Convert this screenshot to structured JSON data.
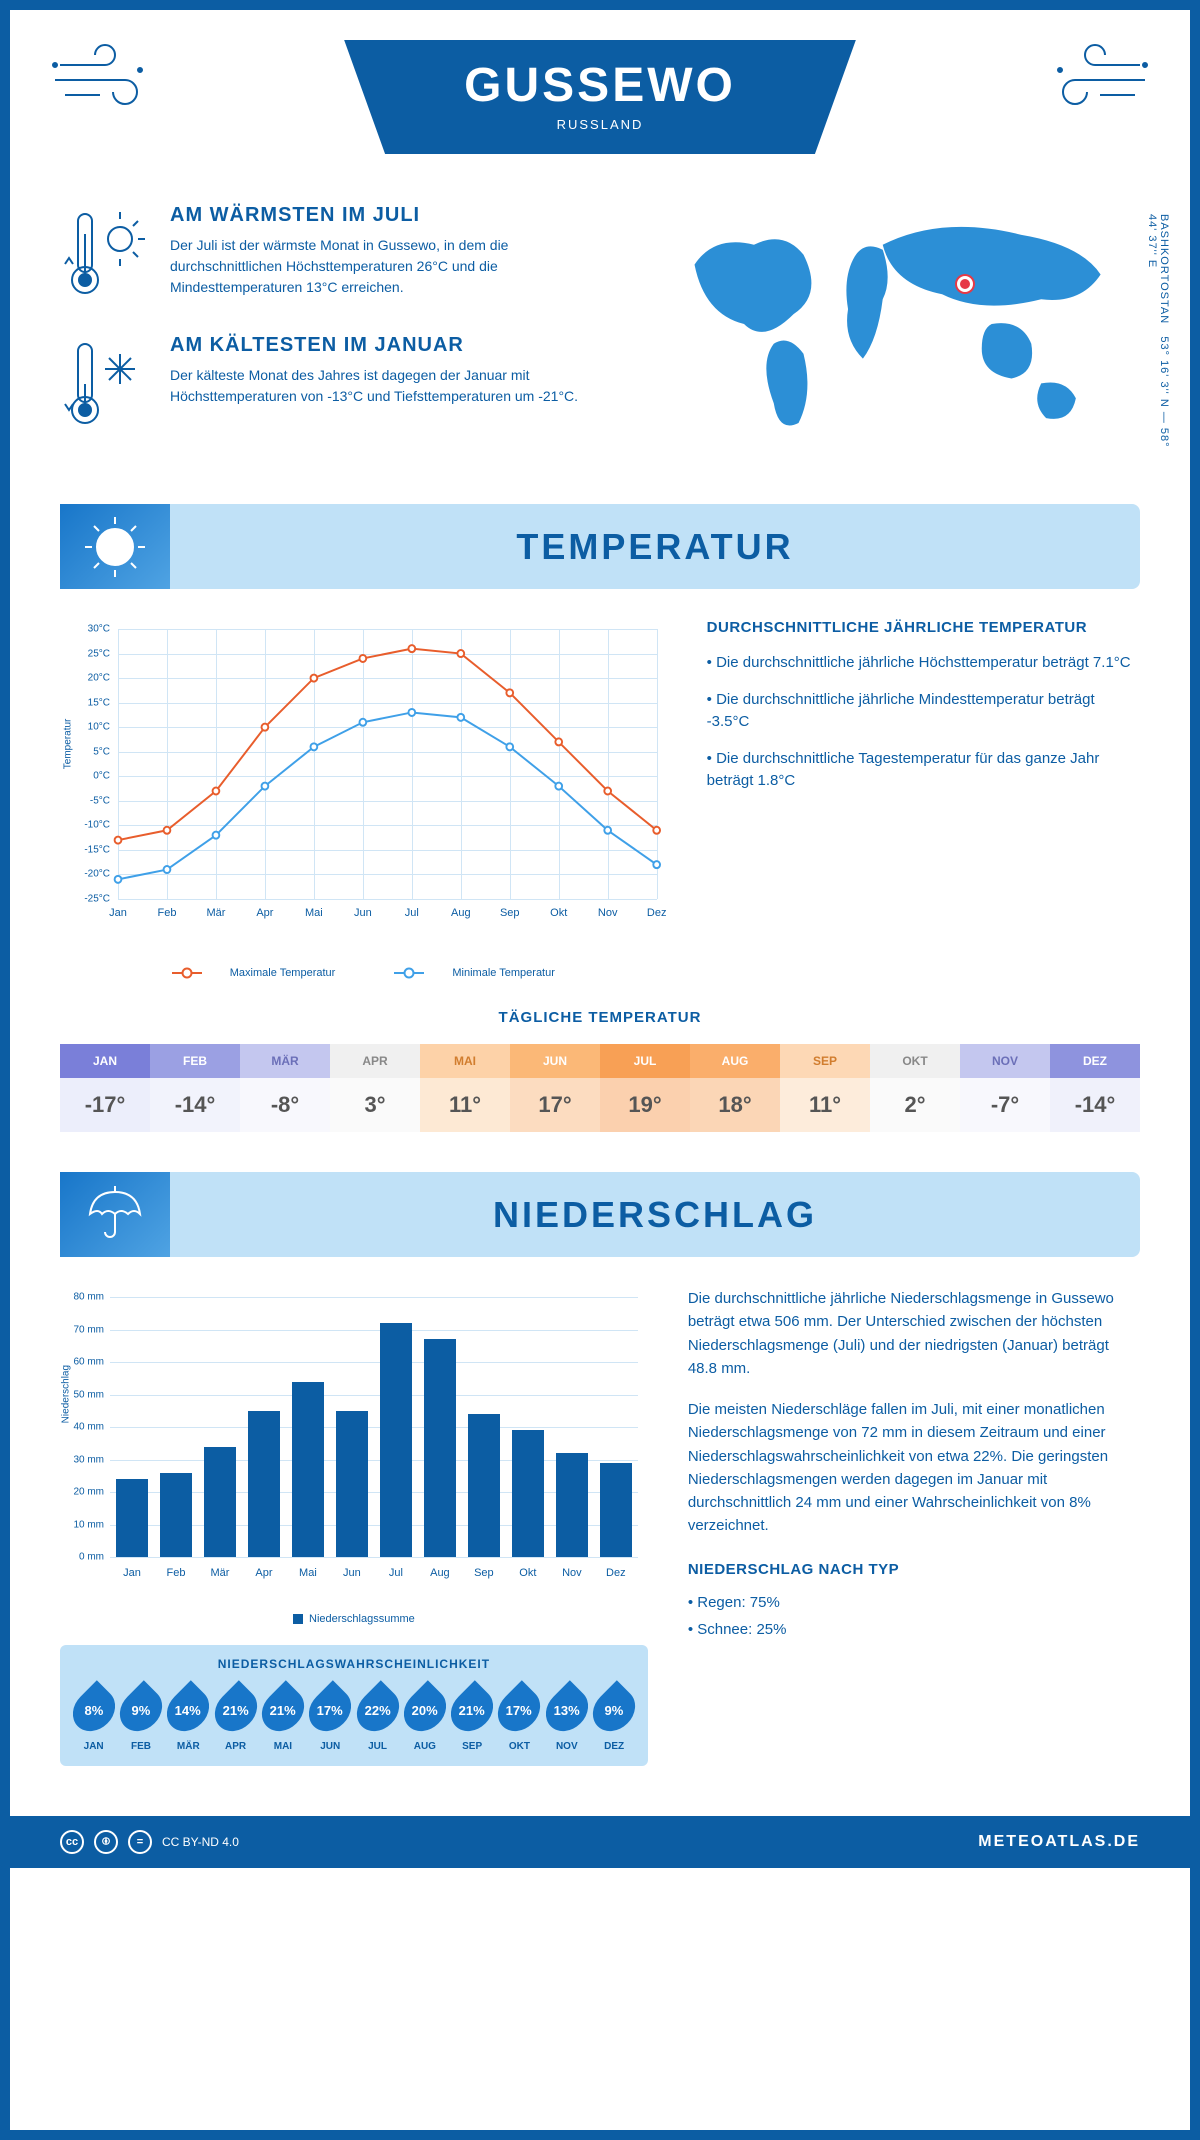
{
  "header": {
    "title": "GUSSEWO",
    "subtitle": "RUSSLAND"
  },
  "intro": {
    "warm": {
      "title": "AM WÄRMSTEN IM JULI",
      "text": "Der Juli ist der wärmste Monat in Gussewo, in dem die durchschnittlichen Höchsttemperaturen 26°C und die Mindesttemperaturen 13°C erreichen."
    },
    "cold": {
      "title": "AM KÄLTESTEN IM JANUAR",
      "text": "Der kälteste Monat des Jahres ist dagegen der Januar mit Höchsttemperaturen von -13°C und Tiefsttemperaturen um -21°C."
    },
    "coords": "53° 16' 3'' N — 58° 44' 37'' E",
    "region": "BASHKORTOSTAN"
  },
  "sections": {
    "temperature": "TEMPERATUR",
    "precip": "NIEDERSCHLAG"
  },
  "temp_chart": {
    "type": "line",
    "months": [
      "Jan",
      "Feb",
      "Mär",
      "Apr",
      "Mai",
      "Jun",
      "Jul",
      "Aug",
      "Sep",
      "Okt",
      "Nov",
      "Dez"
    ],
    "max_values": [
      -13,
      -11,
      -3,
      10,
      20,
      24,
      26,
      25,
      17,
      7,
      -3,
      -11
    ],
    "min_values": [
      -21,
      -19,
      -12,
      -2,
      6,
      11,
      13,
      12,
      6,
      -2,
      -11,
      -18
    ],
    "max_color": "#e85d2c",
    "min_color": "#3fa0e8",
    "ylim": [
      -25,
      30
    ],
    "ytick_step": 5,
    "y_unit": "°C",
    "grid_color": "#d0e5f5",
    "axis_title": "Temperatur",
    "line_width": 2,
    "marker_size": 7,
    "legend": {
      "max": "Maximale Temperatur",
      "min": "Minimale Temperatur"
    }
  },
  "temp_info": {
    "title": "DURCHSCHNITTLICHE JÄHRLICHE TEMPERATUR",
    "bullets": [
      "• Die durchschnittliche jährliche Höchsttemperatur beträgt 7.1°C",
      "• Die durchschnittliche jährliche Mindesttemperatur beträgt -3.5°C",
      "• Die durchschnittliche Tagestemperatur für das ganze Jahr beträgt 1.8°C"
    ]
  },
  "daily_temp": {
    "title": "TÄGLICHE TEMPERATUR",
    "months": [
      "JAN",
      "FEB",
      "MÄR",
      "APR",
      "MAI",
      "JUN",
      "JUL",
      "AUG",
      "SEP",
      "OKT",
      "NOV",
      "DEZ"
    ],
    "values": [
      "-17°",
      "-14°",
      "-8°",
      "3°",
      "11°",
      "17°",
      "19°",
      "18°",
      "11°",
      "2°",
      "-7°",
      "-14°"
    ],
    "head_colors": [
      "#7a7fd9",
      "#9ba0e3",
      "#c4c7ef",
      "#f0f0f0",
      "#fdd2a8",
      "#fbb877",
      "#f8a055",
      "#faae6b",
      "#fdd8b5",
      "#f0f0f0",
      "#c4c7ef",
      "#8e93de"
    ],
    "body_colors": [
      "#eceefb",
      "#f2f3fc",
      "#f8f8fd",
      "#fafafa",
      "#fde9d4",
      "#fcdcc0",
      "#fbd0ae",
      "#fbd6b6",
      "#fdecdb",
      "#fafafa",
      "#f8f8fd",
      "#f0f1fb"
    ],
    "text_colors": [
      "#fff",
      "#fff",
      "#6b6fb8",
      "#888",
      "#d17d2e",
      "#fff",
      "#fff",
      "#fff",
      "#d17d2e",
      "#888",
      "#6b6fb8",
      "#fff"
    ],
    "val_text": "#555"
  },
  "precip_chart": {
    "type": "bar",
    "months": [
      "Jan",
      "Feb",
      "Mär",
      "Apr",
      "Mai",
      "Jun",
      "Jul",
      "Aug",
      "Sep",
      "Okt",
      "Nov",
      "Dez"
    ],
    "values": [
      24,
      26,
      34,
      45,
      54,
      45,
      72,
      67,
      44,
      39,
      32,
      29
    ],
    "bar_color": "#0c5da3",
    "ylim": [
      0,
      80
    ],
    "ytick_step": 10,
    "y_unit": " mm",
    "grid_color": "#d0e5f5",
    "axis_title": "Niederschlag",
    "legend": "Niederschlagssumme",
    "bar_width_pct": 6
  },
  "precip_text": {
    "p1": "Die durchschnittliche jährliche Niederschlagsmenge in Gussewo beträgt etwa 506 mm. Der Unterschied zwischen der höchsten Niederschlagsmenge (Juli) und der niedrigsten (Januar) beträgt 48.8 mm.",
    "p2": "Die meisten Niederschläge fallen im Juli, mit einer monatlichen Niederschlagsmenge von 72 mm in diesem Zeitraum und einer Niederschlagswahrscheinlichkeit von etwa 22%. Die geringsten Niederschlagsmengen werden dagegen im Januar mit durchschnittlich 24 mm und einer Wahrscheinlichkeit von 8% verzeichnet.",
    "type_title": "NIEDERSCHLAG NACH TYP",
    "types": [
      "• Regen: 75%",
      "• Schnee: 25%"
    ]
  },
  "prob": {
    "title": "NIEDERSCHLAGSWAHRSCHEINLICHKEIT",
    "months": [
      "JAN",
      "FEB",
      "MÄR",
      "APR",
      "MAI",
      "JUN",
      "JUL",
      "AUG",
      "SEP",
      "OKT",
      "NOV",
      "DEZ"
    ],
    "values": [
      "8%",
      "9%",
      "14%",
      "21%",
      "21%",
      "17%",
      "22%",
      "20%",
      "21%",
      "17%",
      "13%",
      "9%"
    ],
    "drop_color": "#1876c9",
    "bg_color": "#c0e1f7"
  },
  "footer": {
    "license": "CC BY-ND 4.0",
    "site": "METEOATLAS.DE"
  },
  "colors": {
    "primary": "#0c5da3",
    "light_blue": "#c0e1f7",
    "accent_blue": "#1876c9"
  }
}
